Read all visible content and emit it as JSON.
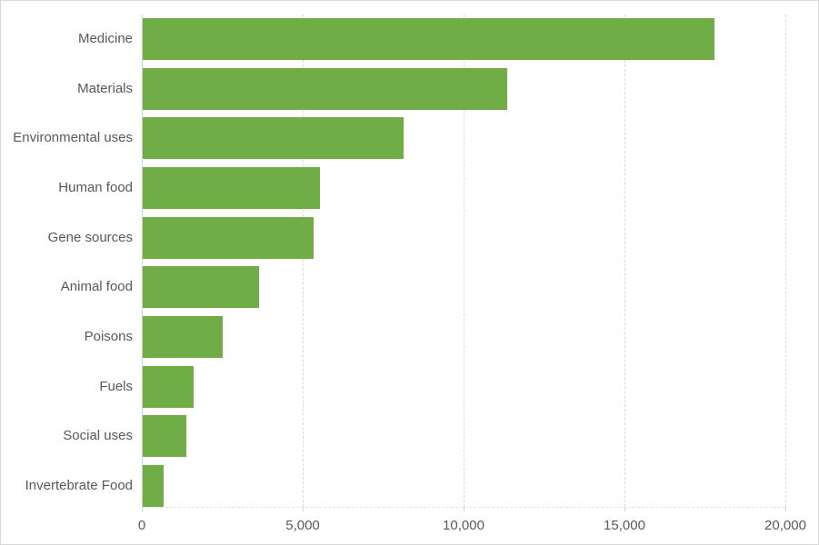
{
  "chart_data": {
    "type": "bar",
    "orientation": "horizontal",
    "categories": [
      "Medicine",
      "Materials",
      "Environmental uses",
      "Human food",
      "Gene sources",
      "Animal food",
      "Poisons",
      "Fuels",
      "Social uses",
      "Invertebrate Food"
    ],
    "values": [
      17810,
      11365,
      8140,
      5538,
      5338,
      3649,
      2503,
      1621,
      1382,
      683
    ],
    "xlim": [
      0,
      20000
    ],
    "x_ticks": [
      0,
      5000,
      10000,
      15000,
      20000
    ],
    "x_tick_labels": [
      "0",
      "5,000",
      "10,000",
      "15,000",
      "20,000"
    ],
    "legend": "none",
    "grid": "vertical dashed gridlines at x ticks",
    "colors": {
      "bar": "#70AD47",
      "axis_text": "#595959",
      "category_text": "#595959",
      "gridline": "#D9D9D9",
      "axis_line": "#D0D0D0",
      "background": "#FFFFFF",
      "border": "#D9D9D9"
    }
  }
}
